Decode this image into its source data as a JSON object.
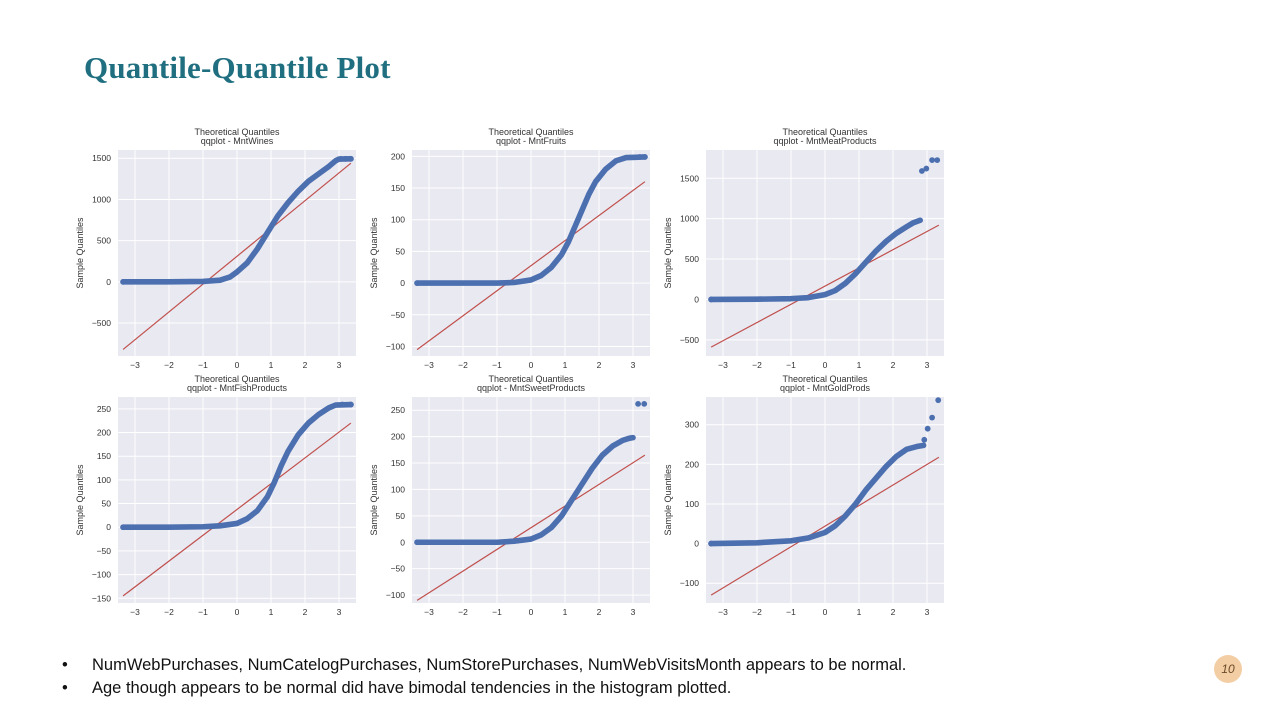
{
  "slide": {
    "title": "Quantile-Quantile Plot",
    "page_number": "10",
    "bullets": [
      "NumWebPurchases, NumCatelogPurchases, NumStorePurchases, NumWebVisitsMonth appears to be normal.",
      "Age though appears to be normal did have bimodal tendencies in the histogram plotted."
    ]
  },
  "colors": {
    "title": "#1f6f80",
    "points": "#4c6fb0",
    "line": "#c0504d",
    "plot_bg": "#e9e9f1",
    "grid": "#ffffff",
    "badge": "#f3cda3"
  },
  "chart_data": [
    {
      "type": "scatter",
      "title": "qqplot - MntWines",
      "top_label": "Theoretical Quantiles",
      "xlabel": "",
      "ylabel": "Sample Quantiles",
      "xlim": [
        -3.5,
        3.5
      ],
      "ylim": [
        -900,
        1600
      ],
      "xticks": [
        -3,
        -2,
        -1,
        0,
        1,
        2,
        3
      ],
      "yticks": [
        -500,
        0,
        500,
        1000,
        1500
      ],
      "reference_line": [
        [
          -3.35,
          -820
        ],
        [
          3.35,
          1440
        ]
      ],
      "quantile_curve": [
        [
          -3.35,
          0
        ],
        [
          -2.0,
          0
        ],
        [
          -1.0,
          5
        ],
        [
          -0.5,
          20
        ],
        [
          -0.2,
          60
        ],
        [
          0.0,
          120
        ],
        [
          0.3,
          230
        ],
        [
          0.6,
          400
        ],
        [
          0.9,
          600
        ],
        [
          1.2,
          800
        ],
        [
          1.5,
          960
        ],
        [
          1.8,
          1100
        ],
        [
          2.1,
          1220
        ],
        [
          2.4,
          1310
        ],
        [
          2.7,
          1400
        ],
        [
          2.9,
          1470
        ],
        [
          3.0,
          1490
        ],
        [
          3.35,
          1493
        ]
      ],
      "sparse_points": [
        [
          3.05,
          1492
        ],
        [
          3.2,
          1493
        ],
        [
          3.35,
          1493
        ]
      ],
      "grid": true,
      "legend": "none"
    },
    {
      "type": "scatter",
      "title": "qqplot - MntFruits",
      "top_label": "Theoretical Quantiles",
      "xlabel": "",
      "ylabel": "Sample Quantiles",
      "xlim": [
        -3.5,
        3.5
      ],
      "ylim": [
        -115,
        210
      ],
      "xticks": [
        -3,
        -2,
        -1,
        0,
        1,
        2,
        3
      ],
      "yticks": [
        -100,
        -50,
        0,
        50,
        100,
        150,
        200
      ],
      "reference_line": [
        [
          -3.35,
          -105
        ],
        [
          3.35,
          160
        ]
      ],
      "quantile_curve": [
        [
          -3.35,
          0
        ],
        [
          -2.0,
          0
        ],
        [
          -1.0,
          0
        ],
        [
          -0.5,
          1
        ],
        [
          0.0,
          5
        ],
        [
          0.3,
          12
        ],
        [
          0.6,
          25
        ],
        [
          0.9,
          45
        ],
        [
          1.1,
          65
        ],
        [
          1.3,
          90
        ],
        [
          1.5,
          115
        ],
        [
          1.7,
          140
        ],
        [
          1.9,
          160
        ],
        [
          2.2,
          180
        ],
        [
          2.5,
          193
        ],
        [
          2.8,
          198
        ],
        [
          3.35,
          199
        ]
      ],
      "sparse_points": [
        [
          3.2,
          199
        ],
        [
          3.35,
          199
        ]
      ],
      "grid": true,
      "legend": "none"
    },
    {
      "type": "scatter",
      "title": "qqplot - MntMeatProducts",
      "top_label": "Theoretical Quantiles",
      "xlabel": "",
      "ylabel": "Sample Quantiles",
      "xlim": [
        -3.5,
        3.5
      ],
      "ylim": [
        -700,
        1850
      ],
      "xticks": [
        -3,
        -2,
        -1,
        0,
        1,
        2,
        3
      ],
      "yticks": [
        -500,
        0,
        500,
        1000,
        1500
      ],
      "reference_line": [
        [
          -3.35,
          -590
        ],
        [
          3.35,
          920
        ]
      ],
      "quantile_curve": [
        [
          -3.35,
          0
        ],
        [
          -2.0,
          3
        ],
        [
          -1.0,
          10
        ],
        [
          -0.5,
          22
        ],
        [
          0.0,
          60
        ],
        [
          0.3,
          110
        ],
        [
          0.6,
          200
        ],
        [
          0.9,
          320
        ],
        [
          1.2,
          460
        ],
        [
          1.5,
          600
        ],
        [
          1.8,
          720
        ],
        [
          2.1,
          820
        ],
        [
          2.4,
          900
        ],
        [
          2.6,
          950
        ],
        [
          2.8,
          980
        ]
      ],
      "sparse_points": [
        [
          2.85,
          1590
        ],
        [
          2.98,
          1620
        ],
        [
          3.15,
          1725
        ],
        [
          3.3,
          1725
        ]
      ],
      "grid": true,
      "legend": "none"
    },
    {
      "type": "scatter",
      "title": "qqplot - MntFishProducts",
      "top_label": "Theoretical Quantiles",
      "xlabel": "",
      "ylabel": "Sample Quantiles",
      "xlim": [
        -3.5,
        3.5
      ],
      "ylim": [
        -160,
        275
      ],
      "xticks": [
        -3,
        -2,
        -1,
        0,
        1,
        2,
        3
      ],
      "yticks": [
        -150,
        -100,
        -50,
        0,
        50,
        100,
        150,
        200,
        250
      ],
      "reference_line": [
        [
          -3.35,
          -145
        ],
        [
          3.35,
          220
        ]
      ],
      "quantile_curve": [
        [
          -3.35,
          0
        ],
        [
          -2.0,
          0
        ],
        [
          -1.0,
          1
        ],
        [
          -0.5,
          3
        ],
        [
          0.0,
          8
        ],
        [
          0.3,
          18
        ],
        [
          0.6,
          35
        ],
        [
          0.9,
          65
        ],
        [
          1.1,
          95
        ],
        [
          1.3,
          130
        ],
        [
          1.5,
          160
        ],
        [
          1.8,
          195
        ],
        [
          2.1,
          220
        ],
        [
          2.4,
          238
        ],
        [
          2.7,
          252
        ],
        [
          2.9,
          258
        ],
        [
          3.35,
          259
        ]
      ],
      "sparse_points": [
        [
          3.1,
          259
        ],
        [
          3.35,
          259
        ]
      ],
      "grid": true,
      "legend": "none"
    },
    {
      "type": "scatter",
      "title": "qqplot - MntSweetProducts",
      "top_label": "Theoretical Quantiles",
      "xlabel": "",
      "ylabel": "Sample Quantiles",
      "xlim": [
        -3.5,
        3.5
      ],
      "ylim": [
        -115,
        275
      ],
      "xticks": [
        -3,
        -2,
        -1,
        0,
        1,
        2,
        3
      ],
      "yticks": [
        -100,
        -50,
        0,
        50,
        100,
        150,
        200,
        250
      ],
      "reference_line": [
        [
          -3.35,
          -110
        ],
        [
          3.35,
          165
        ]
      ],
      "quantile_curve": [
        [
          -3.35,
          0
        ],
        [
          -2.0,
          0
        ],
        [
          -1.0,
          0
        ],
        [
          -0.5,
          2
        ],
        [
          0.0,
          6
        ],
        [
          0.3,
          14
        ],
        [
          0.6,
          28
        ],
        [
          0.9,
          50
        ],
        [
          1.2,
          80
        ],
        [
          1.5,
          110
        ],
        [
          1.8,
          140
        ],
        [
          2.1,
          165
        ],
        [
          2.4,
          182
        ],
        [
          2.7,
          193
        ],
        [
          2.9,
          197
        ],
        [
          3.0,
          198
        ]
      ],
      "sparse_points": [
        [
          3.15,
          262
        ],
        [
          3.33,
          262
        ]
      ],
      "grid": true,
      "legend": "none"
    },
    {
      "type": "scatter",
      "title": "qqplot - MntGoldProds",
      "top_label": "Theoretical Quantiles",
      "xlabel": "",
      "ylabel": "Sample Quantiles",
      "xlim": [
        -3.5,
        3.5
      ],
      "ylim": [
        -150,
        370
      ],
      "xticks": [
        -3,
        -2,
        -1,
        0,
        1,
        2,
        3
      ],
      "yticks": [
        -100,
        0,
        100,
        200,
        300
      ],
      "reference_line": [
        [
          -3.35,
          -130
        ],
        [
          3.35,
          218
        ]
      ],
      "quantile_curve": [
        [
          -3.35,
          0
        ],
        [
          -2.0,
          2
        ],
        [
          -1.0,
          7
        ],
        [
          -0.5,
          14
        ],
        [
          0.0,
          28
        ],
        [
          0.3,
          45
        ],
        [
          0.6,
          70
        ],
        [
          0.9,
          100
        ],
        [
          1.2,
          135
        ],
        [
          1.5,
          165
        ],
        [
          1.8,
          195
        ],
        [
          2.1,
          220
        ],
        [
          2.4,
          238
        ],
        [
          2.7,
          245
        ],
        [
          2.9,
          248
        ]
      ],
      "sparse_points": [
        [
          2.92,
          262
        ],
        [
          3.02,
          290
        ],
        [
          3.15,
          318
        ],
        [
          3.33,
          362
        ]
      ],
      "grid": true,
      "legend": "none"
    }
  ]
}
